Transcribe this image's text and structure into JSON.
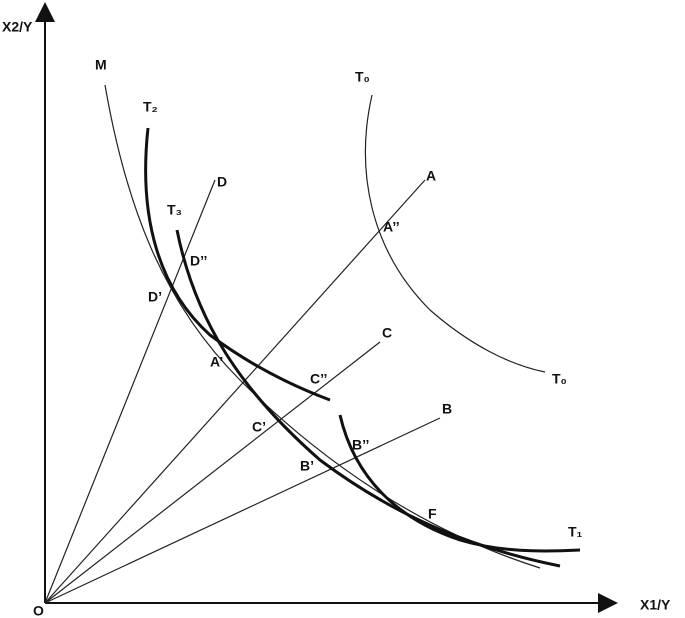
{
  "axes": {
    "y_label": "X2/Y",
    "x_label": "X1/Y",
    "origin": "O"
  },
  "curves": {
    "m": "M",
    "t0_top": "T₀",
    "t0_end": "T₀",
    "t2": "T₂",
    "t3": "T₃",
    "t1": "T₁"
  },
  "rays": {
    "d": "D",
    "a": "A",
    "c": "C",
    "b": "B"
  },
  "points": {
    "d1": "D’",
    "d2": "D’’",
    "a1": "A’",
    "a2": "A’’",
    "c1": "C’",
    "c2": "C’’",
    "b1": "B’",
    "b2": "B’’",
    "f": "F"
  }
}
